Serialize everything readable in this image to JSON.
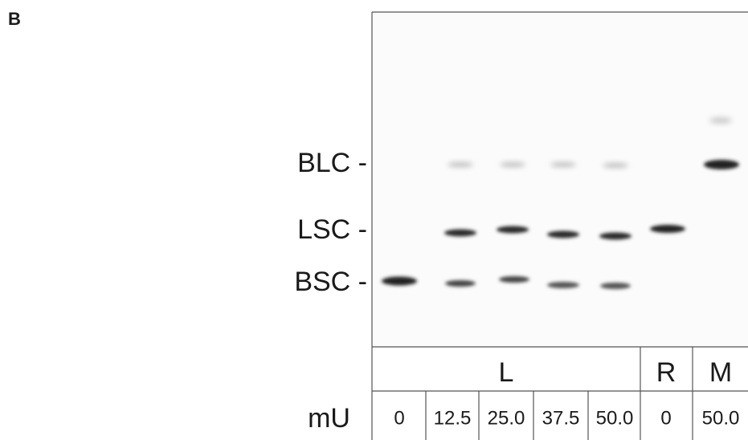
{
  "panel": "B",
  "markers": [
    "BLC -",
    "LSC -",
    "BSC -"
  ],
  "groups": [
    "L",
    "R",
    "M"
  ],
  "unit_label": "mU",
  "lanes": [
    "0",
    "12.5",
    "25.0",
    "37.5",
    "50.0",
    "0",
    "50.0"
  ]
}
